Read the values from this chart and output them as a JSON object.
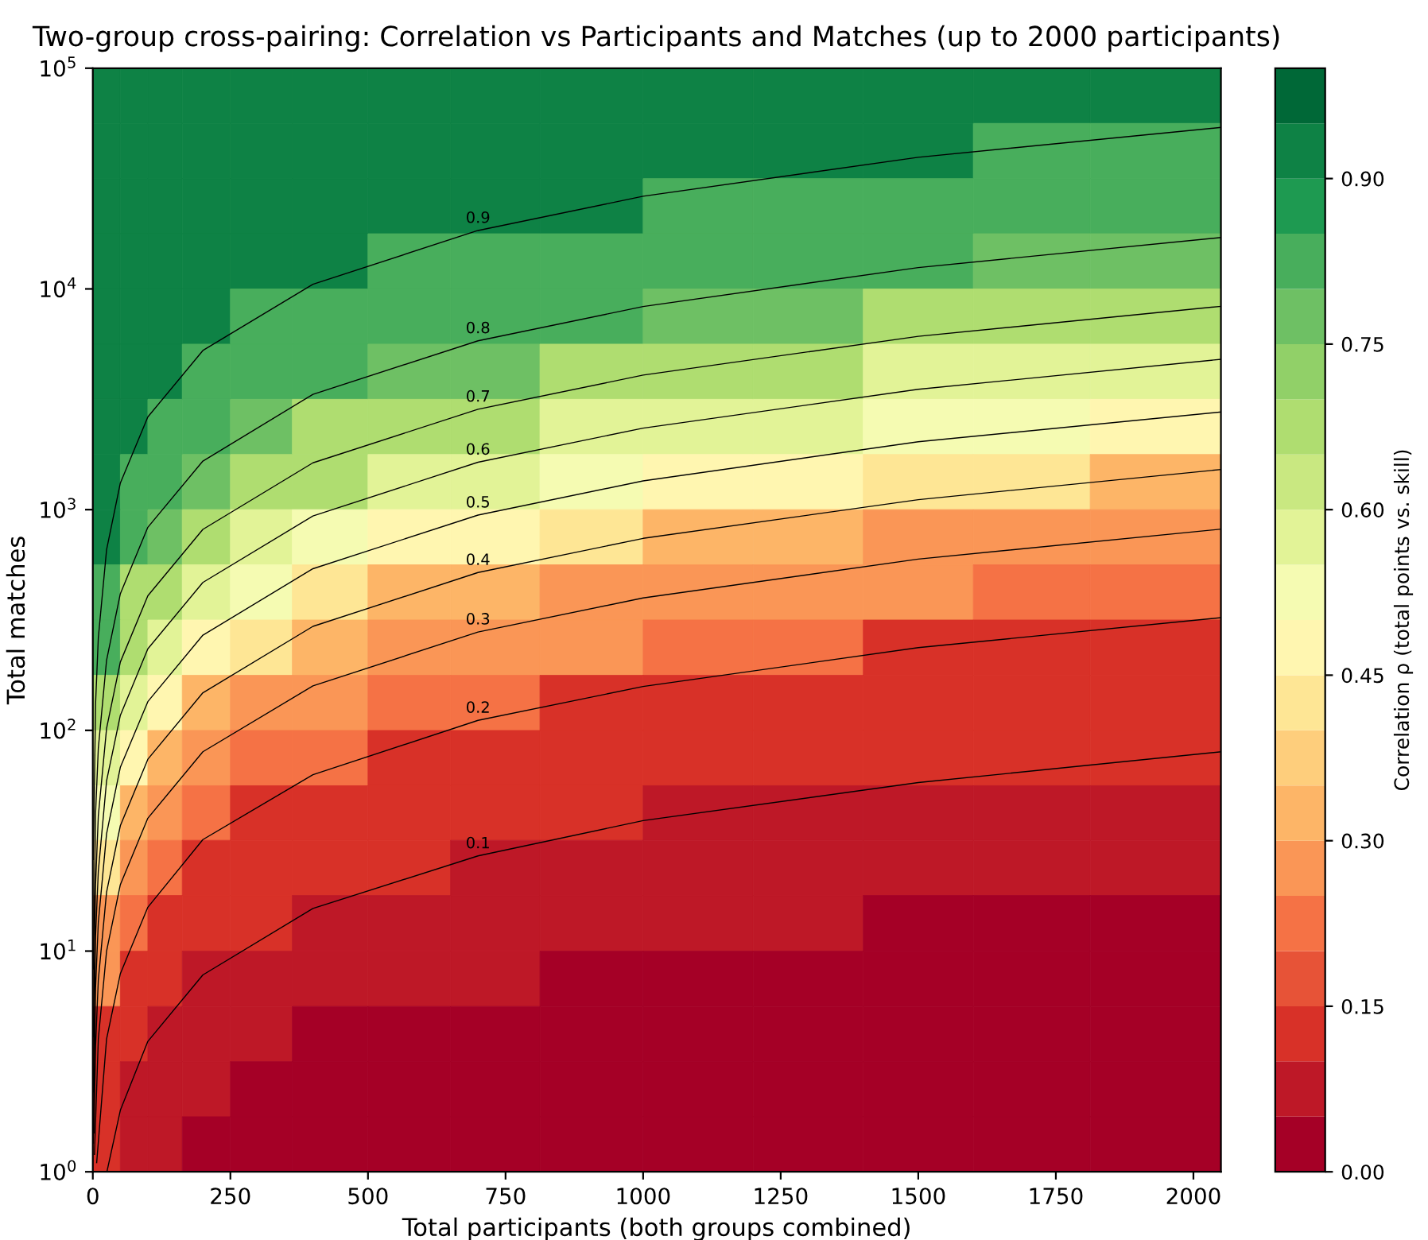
{
  "chart_data": {
    "type": "heatmap",
    "title": "Two-group cross-pairing: Correlation vs Participants and Matches (up to 2000 participants)",
    "xlabel": "Total participants (both groups combined)",
    "ylabel": "Total matches",
    "clabel": "Correlation ρ (total points vs. skill)",
    "x": [
      25,
      75,
      125,
      200,
      300,
      425,
      575,
      725,
      900,
      1100,
      1300,
      1500,
      1700,
      1925
    ],
    "y": [
      74989,
      42170,
      23714,
      13335,
      7499,
      4217,
      2371,
      1334,
      750,
      422,
      237,
      133,
      75,
      42,
      24,
      13.3,
      7.5,
      4.2,
      2.37,
      1.33
    ],
    "cells": [
      [
        0.95,
        0.95,
        0.95,
        0.95,
        0.95,
        0.9,
        0.9,
        0.9,
        0.9,
        0.9,
        0.9,
        0.9,
        0.9,
        0.9
      ],
      [
        0.95,
        0.95,
        0.95,
        0.95,
        0.9,
        0.9,
        0.9,
        0.9,
        0.9,
        0.9,
        0.9,
        0.9,
        0.85,
        0.85
      ],
      [
        0.95,
        0.95,
        0.9,
        0.9,
        0.9,
        0.9,
        0.9,
        0.9,
        0.9,
        0.85,
        0.85,
        0.85,
        0.8,
        0.8
      ],
      [
        0.95,
        0.9,
        0.9,
        0.9,
        0.9,
        0.9,
        0.85,
        0.85,
        0.85,
        0.8,
        0.8,
        0.8,
        0.75,
        0.75
      ],
      [
        0.95,
        0.9,
        0.9,
        0.9,
        0.85,
        0.85,
        0.8,
        0.8,
        0.8,
        0.75,
        0.75,
        0.7,
        0.7,
        0.65
      ],
      [
        0.9,
        0.9,
        0.9,
        0.85,
        0.8,
        0.8,
        0.75,
        0.75,
        0.7,
        0.65,
        0.65,
        0.6,
        0.6,
        0.55
      ],
      [
        0.9,
        0.9,
        0.85,
        0.8,
        0.75,
        0.7,
        0.7,
        0.65,
        0.6,
        0.55,
        0.55,
        0.5,
        0.5,
        0.45
      ],
      [
        0.9,
        0.85,
        0.8,
        0.75,
        0.7,
        0.65,
        0.55,
        0.55,
        0.5,
        0.45,
        0.45,
        0.4,
        0.4,
        0.35
      ],
      [
        0.9,
        0.8,
        0.75,
        0.65,
        0.6,
        0.5,
        0.45,
        0.45,
        0.4,
        0.35,
        0.35,
        0.3,
        0.3,
        0.25
      ],
      [
        0.85,
        0.7,
        0.65,
        0.55,
        0.5,
        0.4,
        0.35,
        0.35,
        0.3,
        0.25,
        0.25,
        0.25,
        0.2,
        0.2
      ],
      [
        0.8,
        0.65,
        0.55,
        0.45,
        0.4,
        0.35,
        0.3,
        0.25,
        0.25,
        0.2,
        0.2,
        0.15,
        0.15,
        0.15
      ],
      [
        0.7,
        0.55,
        0.45,
        0.35,
        0.3,
        0.25,
        0.2,
        0.2,
        0.15,
        0.15,
        0.15,
        0.1,
        0.1,
        0.1
      ],
      [
        0.6,
        0.45,
        0.35,
        0.25,
        0.2,
        0.2,
        0.15,
        0.15,
        0.1,
        0.1,
        0.1,
        0.1,
        0.1,
        0.1
      ],
      [
        0.5,
        0.35,
        0.25,
        0.2,
        0.15,
        0.15,
        0.1,
        0.1,
        0.1,
        0.05,
        0.05,
        0.05,
        0.05,
        0.05
      ],
      [
        0.4,
        0.25,
        0.2,
        0.15,
        0.1,
        0.1,
        0.1,
        0.05,
        0.05,
        0.05,
        0.05,
        0.05,
        0.05,
        0.05
      ],
      [
        0.3,
        0.2,
        0.15,
        0.1,
        0.1,
        0.05,
        0.05,
        0.05,
        0.05,
        0.05,
        0.05,
        0,
        0,
        0
      ],
      [
        0.25,
        0.15,
        0.1,
        0.05,
        0.05,
        0.05,
        0.05,
        0.05,
        0,
        0,
        0,
        0,
        0,
        0
      ],
      [
        0.15,
        0.1,
        0.05,
        0.05,
        0.05,
        0,
        0,
        0,
        0,
        0,
        0,
        0,
        0,
        0
      ],
      [
        0.15,
        0.05,
        0.05,
        0.05,
        0,
        0,
        0,
        0,
        0,
        0,
        0,
        0,
        0,
        0
      ],
      [
        0.1,
        0.05,
        0.05,
        0,
        0,
        0,
        0,
        0,
        0,
        0,
        0,
        0,
        0,
        0
      ]
    ],
    "clim": [
      0,
      1
    ],
    "cticks": [
      {
        "value": 0,
        "label": "0.00"
      },
      {
        "value": 0.15,
        "label": "0.15"
      },
      {
        "value": 0.3,
        "label": "0.30"
      },
      {
        "value": 0.45,
        "label": "0.45"
      },
      {
        "value": 0.6,
        "label": "0.60"
      },
      {
        "value": 0.75,
        "label": "0.75"
      },
      {
        "value": 0.9,
        "label": "0.90"
      }
    ],
    "xlim": [
      0,
      2050
    ],
    "xticks": [
      0,
      250,
      500,
      750,
      1000,
      1250,
      1500,
      1750,
      2000
    ],
    "ylim": [
      1,
      100000
    ],
    "log": "y",
    "yticks": [
      {
        "value": 1,
        "label": "10$^{0}$"
      },
      {
        "value": 10,
        "label": "10$^{1}$"
      },
      {
        "value": 100,
        "label": "10$^{2}$"
      },
      {
        "value": 1000,
        "label": "10$^{3}$"
      },
      {
        "value": 10000,
        "label": "10$^{4}$"
      },
      {
        "value": 100000,
        "label": "10$^{5}$"
      }
    ],
    "series": [
      {
        "name": "0.1",
        "type": "line",
        "color": "#000000",
        "x": [
          26,
          50,
          100,
          200,
          400,
          700,
          1000,
          1500,
          2050
        ],
        "values": [
          1.01,
          1.9,
          3.9,
          7.8,
          15.6,
          27,
          39,
          58,
          80
        ]
      },
      {
        "name": "0.2",
        "type": "line",
        "color": "#000000",
        "x": [
          7,
          25,
          50,
          100,
          200,
          400,
          700,
          1000,
          1500,
          2050
        ],
        "values": [
          1.1,
          4.0,
          7.9,
          15.8,
          32,
          63,
          111,
          158,
          237,
          324
        ]
      },
      {
        "name": "0.3",
        "type": "line",
        "color": "#000000",
        "x": [
          3,
          10,
          25,
          50,
          100,
          200,
          400,
          700,
          1000,
          1500,
          2050
        ],
        "values": [
          1.2,
          4.0,
          10,
          20,
          40,
          80,
          159,
          279,
          398,
          597,
          816
        ]
      },
      {
        "name": "0.4",
        "type": "line",
        "color": "#000000",
        "x": [
          2,
          5,
          10,
          25,
          50,
          100,
          200,
          400,
          700,
          1000,
          1500,
          2050
        ],
        "values": [
          1.5,
          3.7,
          7.4,
          18.5,
          37,
          74,
          148,
          296,
          519,
          741,
          1110,
          1520
        ]
      },
      {
        "name": "0.5",
        "type": "line",
        "color": "#000000",
        "x": [
          1,
          5,
          10,
          25,
          50,
          100,
          200,
          400,
          700,
          1000,
          1500,
          2050
        ],
        "values": [
          1.35,
          6.8,
          13.5,
          34,
          68,
          135,
          270,
          540,
          945,
          1350,
          2030,
          2770
        ]
      },
      {
        "name": "0.6",
        "type": "line",
        "color": "#000000",
        "x": [
          1,
          5,
          10,
          25,
          50,
          100,
          200,
          400,
          700,
          1000,
          1500,
          2050
        ],
        "values": [
          2.3,
          11.7,
          23,
          59,
          117,
          234,
          468,
          936,
          1640,
          2340,
          3510,
          4800
        ]
      },
      {
        "name": "0.7",
        "type": "line",
        "color": "#000000",
        "x": [
          1,
          5,
          10,
          25,
          50,
          100,
          200,
          400,
          700,
          1000,
          1500,
          2050
        ],
        "values": [
          4.1,
          20,
          41,
          102,
          204,
          407,
          814,
          1630,
          2850,
          4070,
          6100,
          8340
        ]
      },
      {
        "name": "0.8",
        "type": "line",
        "color": "#000000",
        "x": [
          1,
          5,
          10,
          25,
          50,
          100,
          200,
          400,
          700,
          1000,
          1500,
          2050
        ],
        "values": [
          8.3,
          42,
          83,
          208,
          416,
          832,
          1660,
          3330,
          5820,
          8320,
          12500,
          17100
        ]
      },
      {
        "name": "0.9",
        "type": "line",
        "color": "#000000",
        "x": [
          1,
          5,
          10,
          25,
          50,
          100,
          200,
          400,
          700,
          1000,
          1500,
          2050
        ],
        "values": [
          26,
          132,
          263,
          658,
          1320,
          2630,
          5260,
          10500,
          18400,
          26300,
          39500,
          53900
        ]
      }
    ],
    "grid": false
  }
}
